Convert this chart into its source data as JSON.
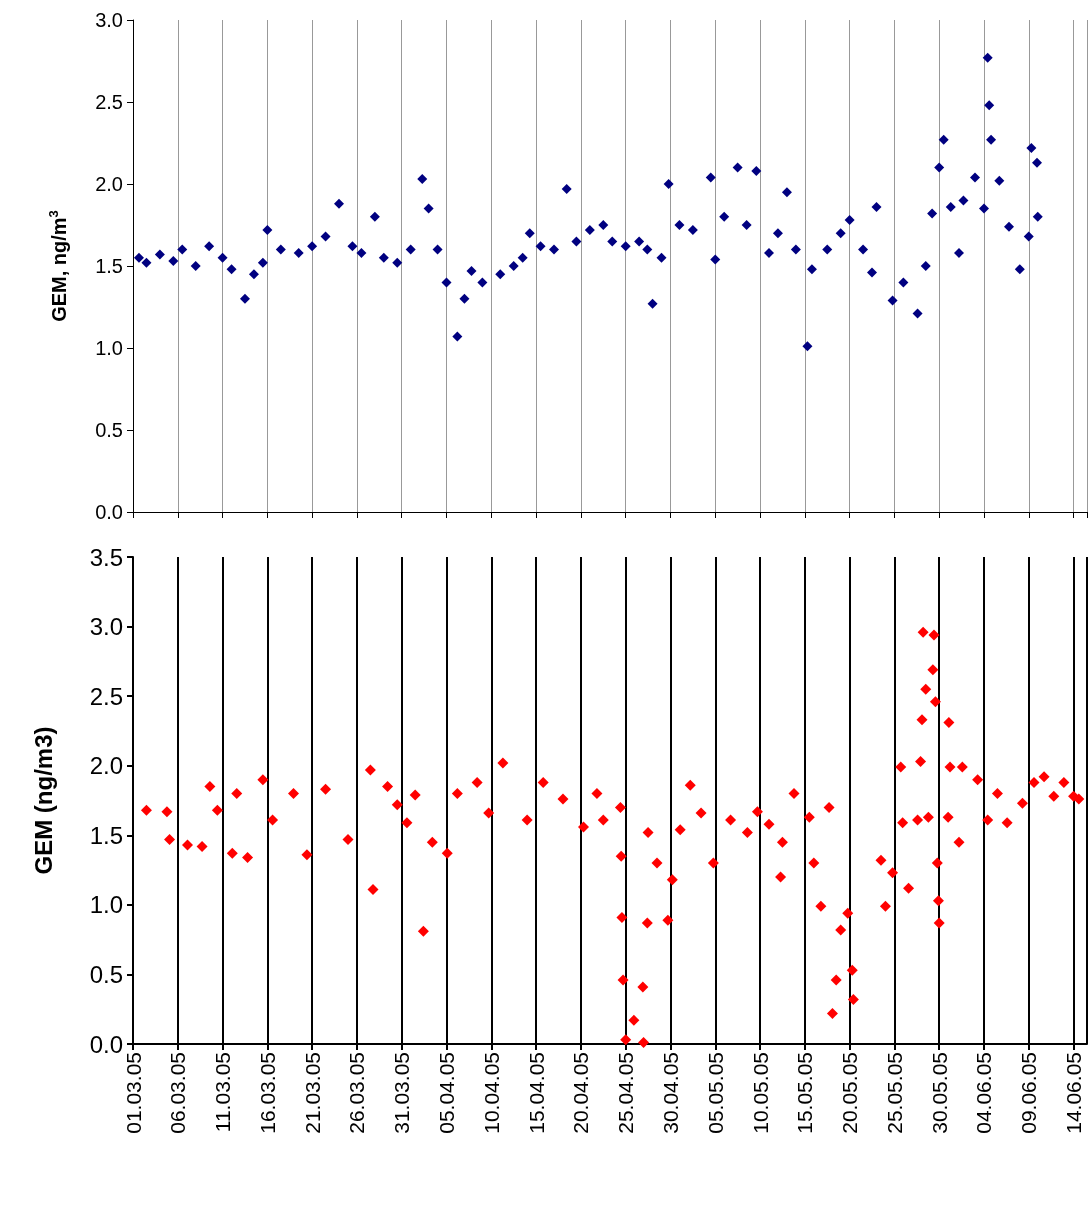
{
  "chart_data": [
    {
      "type": "scatter",
      "ylabel": "GEM, ng/m$^{3}$",
      "marker": "diamond",
      "grid": "x",
      "tick_labels": "y",
      "xlim": [
        "--03-01",
        "--06-15T12:00"
      ],
      "xticks": [
        {
          "value": "--03-01",
          "label": null
        },
        {
          "value": "--03-06",
          "label": null
        },
        {
          "value": "--03-11",
          "label": null
        },
        {
          "value": "--03-16",
          "label": null
        },
        {
          "value": "--03-21",
          "label": null
        },
        {
          "value": "--03-26",
          "label": null
        },
        {
          "value": "--03-31",
          "label": null
        },
        {
          "value": "--04-05",
          "label": null
        },
        {
          "value": "--04-10",
          "label": null
        },
        {
          "value": "--04-15",
          "label": null
        },
        {
          "value": "--04-20",
          "label": null
        },
        {
          "value": "--04-25",
          "label": null
        },
        {
          "value": "--04-30",
          "label": null
        },
        {
          "value": "--05-05",
          "label": null
        },
        {
          "value": "--05-10",
          "label": null
        },
        {
          "value": "--05-15",
          "label": null
        },
        {
          "value": "--05-20",
          "label": null
        },
        {
          "value": "--05-25",
          "label": null
        },
        {
          "value": "--05-30",
          "label": null
        },
        {
          "value": "--06-04",
          "label": null
        },
        {
          "value": "--06-09",
          "label": null
        },
        {
          "value": "--06-14",
          "label": null
        }
      ],
      "ylim": [
        0,
        3
      ],
      "yticks": [
        {
          "value": 0,
          "label": "0.0"
        },
        0.5,
        {
          "value": 1,
          "label": "1.0"
        },
        1.5,
        {
          "value": 2,
          "label": "2.0"
        },
        2.5,
        {
          "value": 3,
          "label": "3.0"
        }
      ],
      "series": [
        {
          "color": "#000080",
          "x": [
            "--03-01T16:00",
            "--03-02T12:00",
            "--03-04",
            "--03-05T12:00",
            "--03-06T12:00",
            "--03-08",
            "--03-09T12:00",
            "--03-11",
            "--03-12",
            "--03-13T12:00",
            "--03-14T12:00",
            "--03-15T12:00",
            "--03-16",
            "--03-17T12:00",
            "--03-19T12:00",
            "--03-21",
            "--03-22T12:00",
            "--03-24",
            "--03-25T12:00",
            "--03-26T12:00",
            "--03-28",
            "--03-29",
            "--03-30T12:00",
            "--04-01",
            "--04-02T07:00",
            "--04-03",
            "--04-04",
            "--04-05",
            "--04-06T05:00",
            "--04-07",
            "--04-07T19:00",
            "--04-09",
            "--04-11",
            "--04-12T12:00",
            "--04-13T12:00",
            "--04-14T07:00",
            "--04-15T12:00",
            "--04-17",
            "--04-18T10:00",
            "--04-19T12:00",
            "--04-21",
            "--04-22T12:00",
            "--04-23T12:00",
            "--04-25",
            "--04-26T12:00",
            "--04-27T10:00",
            "--04-28",
            "--04-29",
            "--04-29T19:00",
            "--05-01",
            "--05-02T12:00",
            "--05-04T12:00",
            "--05-05",
            "--05-06",
            "--05-07T12:00",
            "--05-08T12:00",
            "--05-09T14:00",
            "--05-11",
            "--05-12",
            "--05-13",
            "--05-14",
            "--05-15T07:00",
            "--05-15T19:00",
            "--05-17T12:00",
            "--05-19",
            "--05-20",
            "--05-21T12:00",
            "--05-22T12:00",
            "--05-23",
            "--05-24T19:00",
            "--05-26",
            "--05-27T14:00",
            "--05-28T12:00",
            "--05-29T05:00",
            "--05-30",
            "--05-30T12:00",
            "--05-31T07:00",
            "--06-01T05:00",
            "--06-01T17:00",
            "--06-03",
            "--06-04",
            "--06-04T10:00",
            "--06-04T14:00",
            "--06-04T19:00",
            "--06-05T17:00",
            "--06-06T19:00",
            "--06-08",
            "--06-09",
            "--06-09T07:00",
            "--06-09T22:00",
            "--06-10"
          ],
          "values": [
            1.55,
            1.52,
            1.57,
            1.53,
            1.6,
            1.5,
            1.62,
            1.55,
            1.48,
            1.3,
            1.45,
            1.52,
            1.72,
            1.6,
            1.58,
            1.62,
            1.68,
            1.88,
            1.62,
            1.58,
            1.8,
            1.55,
            1.52,
            1.6,
            2.03,
            1.85,
            1.6,
            1.4,
            1.07,
            1.3,
            1.47,
            1.4,
            1.45,
            1.5,
            1.55,
            1.7,
            1.62,
            1.6,
            1.97,
            1.65,
            1.72,
            1.75,
            1.65,
            1.62,
            1.65,
            1.6,
            1.27,
            1.55,
            2.0,
            1.75,
            1.72,
            2.04,
            1.54,
            1.8,
            2.1,
            1.75,
            2.08,
            1.58,
            1.7,
            1.95,
            1.6,
            1.01,
            1.48,
            1.6,
            1.7,
            1.78,
            1.6,
            1.46,
            1.86,
            1.29,
            1.4,
            1.21,
            1.5,
            1.82,
            2.1,
            2.27,
            1.86,
            1.58,
            1.9,
            2.04,
            1.85,
            2.77,
            2.48,
            2.27,
            2.02,
            1.74,
            1.48,
            1.68,
            2.22,
            2.13,
            1.8
          ]
        }
      ]
    },
    {
      "type": "scatter",
      "ylabel": "GEM (ng/m3)",
      "marker": "diamond",
      "grid": "x",
      "xlim": [
        "--03-01",
        "--06-15T12:00"
      ],
      "xticks": [
        {
          "value": "--03-01",
          "label": "01.03.05"
        },
        {
          "value": "--03-06",
          "label": "06.03.05"
        },
        {
          "value": "--03-11",
          "label": "11.03.05"
        },
        {
          "value": "--03-16",
          "label": "16.03.05"
        },
        {
          "value": "--03-21",
          "label": "21.03.05"
        },
        {
          "value": "--03-26",
          "label": "26.03.05"
        },
        {
          "value": "--03-31",
          "label": "31.03.05"
        },
        {
          "value": "--04-05",
          "label": "05.04.05"
        },
        {
          "value": "--04-10",
          "label": "10.04.05"
        },
        {
          "value": "--04-15",
          "label": "15.04.05"
        },
        {
          "value": "--04-20",
          "label": "20.04.05"
        },
        {
          "value": "--04-25",
          "label": "25.04.05"
        },
        {
          "value": "--04-30",
          "label": "30.04.05"
        },
        {
          "value": "--05-05",
          "label": "05.05.05"
        },
        {
          "value": "--05-10",
          "label": "10.05.05"
        },
        {
          "value": "--05-15",
          "label": "15.05.05"
        },
        {
          "value": "--05-20",
          "label": "20.05.05"
        },
        {
          "value": "--05-25",
          "label": "25.05.05"
        },
        {
          "value": "--05-30",
          "label": "30.05.05"
        },
        {
          "value": "--06-04",
          "label": "04.06.05"
        },
        {
          "value": "--06-09",
          "label": "09.06.05"
        },
        {
          "value": "--06-14",
          "label": "14.06.05"
        }
      ],
      "ylim": [
        0,
        3.5
      ],
      "yticks": [
        {
          "value": 0,
          "label": "0.0"
        },
        0.5,
        {
          "value": 1,
          "label": "1.0"
        },
        1.5,
        {
          "value": 2,
          "label": "2.0"
        },
        2.5,
        {
          "value": 3,
          "label": "3.0"
        },
        3.5
      ],
      "series": [
        {
          "color": "#ff0000",
          "x": [
            "--03-02T12:00",
            "--03-04T19:00",
            "--03-05T02:00",
            "--03-07T02:00",
            "--03-08T17:00",
            "--03-09T14:00",
            "--03-10T10:00",
            "--03-12T02:00",
            "--03-12T14:00",
            "--03-13T19:00",
            "--03-15T12:00",
            "--03-16T14:00",
            "--03-18T22:00",
            "--03-20T10:00",
            "--03-22T12:00",
            "--03-25",
            "--03-27T12:00",
            "--03-27T19:00",
            "--03-29T10:00",
            "--03-30T12:00",
            "--03-31T14:00",
            "--04-01T12:00",
            "--04-02T10:00",
            "--04-03T10:00",
            "--04-05T02:00",
            "--04-06T05:00",
            "--04-08T10:00",
            "--04-09T17:00",
            "--04-11T07:00",
            "--04-14",
            "--04-15T19:00",
            "--04-18",
            "--04-20T07:00",
            "--04-21T19:00",
            "--04-22T12:00",
            "--04-24T10:00",
            "--04-24T12:00",
            "--04-24T14:00",
            "--04-24T17:00",
            "--04-25",
            "--04-25T22:00",
            "--04-26T22:00",
            "--04-27",
            "--04-27T10:00",
            "--04-27T12:00",
            "--04-28T12:00",
            "--04-29T17:00",
            "--04-30T05:00",
            "--05-01T02:00",
            "--05-02T05:00",
            "--05-03T10:00",
            "--05-04T19:00",
            "--05-06T17:00",
            "--05-08T14:00",
            "--05-09T17:00",
            "--05-11",
            "--05-12T07:00",
            "--05-12T12:00",
            "--05-13T19:00",
            "--05-15T12:00",
            "--05-16",
            "--05-16T19:00",
            "--05-17T17:00",
            "--05-18T02:00",
            "--05-18T12:00",
            "--05-19",
            "--05-19T19:00",
            "--05-20T07:00",
            "--05-20T10:00",
            "--05-23T12:00",
            "--05-24",
            "--05-24T19:00",
            "--05-25T17:00",
            "--05-25T22:00",
            "--05-26T14:00",
            "--05-27T14:00",
            "--05-27T22:00",
            "--05-28T02:00",
            "--05-28T05:00",
            "--05-28T12:00",
            "--05-28T19:00",
            "--05-29T07:00",
            "--05-29T10:00",
            "--05-29T14:00",
            "--05-29T19:00",
            "--05-29T22:00",
            "--05-30",
            "--05-31",
            "--05-31T02:00",
            "--05-31T05:00",
            "--06-01T05:00",
            "--06-01T14:00",
            "--06-03T07:00",
            "--06-04T10:00",
            "--06-05T12:00",
            "--06-06T14:00",
            "--06-08T07:00",
            "--06-09T14:00",
            "--06-10T17:00",
            "--06-11T19:00",
            "--06-12T22:00",
            "--06-14",
            "--06-14T14:00"
          ],
          "values": [
            1.68,
            1.67,
            1.47,
            1.43,
            1.42,
            1.85,
            1.68,
            1.37,
            1.8,
            1.34,
            1.9,
            1.61,
            1.8,
            1.36,
            1.83,
            1.47,
            1.97,
            1.11,
            1.85,
            1.72,
            1.59,
            1.79,
            0.81,
            1.45,
            1.37,
            1.8,
            1.88,
            1.66,
            2.02,
            1.61,
            1.88,
            1.76,
            1.56,
            1.8,
            1.61,
            1.7,
            1.35,
            0.91,
            0.46,
            0.03,
            0.17,
            0.41,
            0.01,
            0.87,
            1.52,
            1.3,
            0.89,
            1.18,
            1.54,
            1.86,
            1.66,
            1.3,
            1.61,
            1.52,
            1.67,
            1.58,
            1.2,
            1.45,
            1.8,
            1.63,
            1.3,
            0.99,
            1.7,
            0.22,
            0.46,
            0.82,
            0.94,
            0.53,
            0.32,
            1.32,
            0.99,
            1.23,
            1.99,
            1.59,
            1.12,
            1.61,
            2.03,
            2.33,
            2.96,
            2.55,
            1.63,
            2.69,
            2.94,
            2.46,
            1.3,
            1.03,
            0.87,
            1.63,
            2.31,
            1.99,
            1.45,
            1.99,
            1.9,
            1.61,
            1.8,
            1.59,
            1.73,
            1.88,
            1.92,
            1.78,
            1.88,
            1.78,
            1.76
          ]
        }
      ]
    }
  ]
}
